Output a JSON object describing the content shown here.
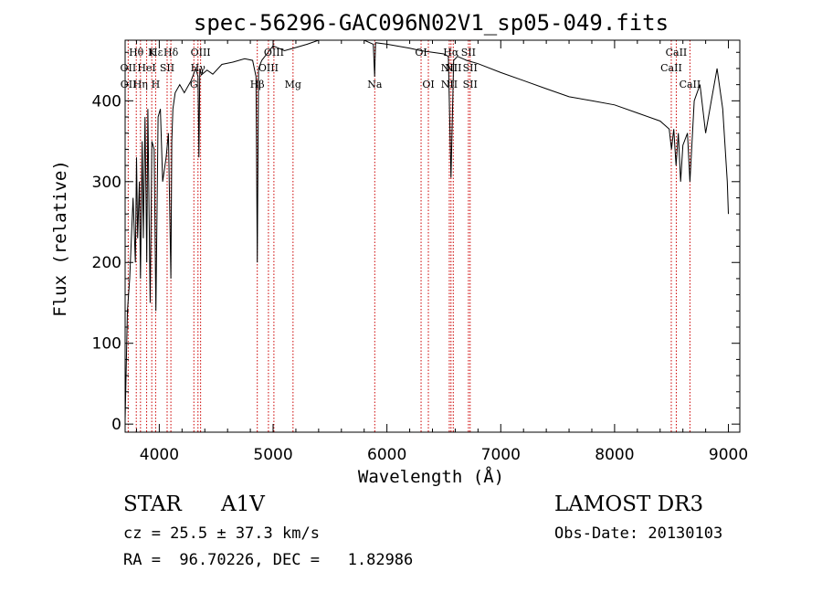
{
  "chart_data": {
    "type": "line",
    "title": "spec-56296-GAC096N02V1_sp05-049.fits",
    "xlabel": "Wavelength (Å)",
    "ylabel": "Flux (relative)",
    "xlim": [
      3700,
      9100
    ],
    "ylim": [
      -10,
      475
    ],
    "x_ticks": [
      4000,
      5000,
      6000,
      7000,
      8000,
      9000
    ],
    "x_tick_labels": [
      "4000",
      "5000",
      "6000",
      "7000",
      "8000",
      "9000"
    ],
    "y_ticks": [
      0,
      100,
      200,
      300,
      400
    ],
    "y_tick_labels": [
      "0",
      "100",
      "200",
      "300",
      "400"
    ],
    "grid": false,
    "series": [
      {
        "name": "spectrum",
        "x": [
          3700,
          3720,
          3740,
          3770,
          3790,
          3800,
          3810,
          3825,
          3835,
          3850,
          3860,
          3875,
          3890,
          3900,
          3920,
          3935,
          3955,
          3970,
          3990,
          4010,
          4030,
          4060,
          4080,
          4102,
          4110,
          4120,
          4140,
          4180,
          4220,
          4280,
          4320,
          4340,
          4348,
          4356,
          4370,
          4420,
          4470,
          4550,
          4650,
          4750,
          4820,
          4850,
          4861,
          4872,
          4900,
          5000,
          5100,
          5200,
          5300,
          5400,
          5600,
          5800,
          5880,
          5892,
          5900,
          6000,
          6200,
          6300,
          6400,
          6500,
          6540,
          6563,
          6586,
          6620,
          6700,
          6800,
          7000,
          7200,
          7400,
          7600,
          7800,
          8000,
          8200,
          8400,
          8480,
          8500,
          8520,
          8540,
          8560,
          8580,
          8600,
          8640,
          8662,
          8700,
          8750,
          8800,
          8850,
          8900,
          8950,
          8990,
          9000
        ],
        "y": [
          5,
          140,
          180,
          280,
          200,
          330,
          230,
          300,
          180,
          350,
          230,
          380,
          200,
          390,
          150,
          350,
          340,
          140,
          380,
          390,
          300,
          330,
          360,
          180,
          350,
          390,
          410,
          420,
          410,
          425,
          440,
          430,
          330,
          440,
          432,
          438,
          433,
          445,
          448,
          452,
          450,
          430,
          200,
          440,
          450,
          468,
          462,
          466,
          470,
          478,
          480,
          478,
          470,
          430,
          472,
          470,
          465,
          462,
          460,
          458,
          455,
          305,
          450,
          455,
          450,
          446,
          435,
          425,
          415,
          405,
          400,
          395,
          385,
          375,
          365,
          340,
          365,
          320,
          360,
          300,
          345,
          360,
          300,
          400,
          420,
          360,
          400,
          440,
          390,
          300,
          260
        ]
      }
    ],
    "line_annotations": [
      {
        "label": "Hθ",
        "x": 3798,
        "row": 0
      },
      {
        "label": "Hε",
        "x": 3970,
        "row": 0
      },
      {
        "label": "K",
        "x": 3934,
        "row": 0
      },
      {
        "label": "Hδ",
        "x": 4102,
        "row": 0
      },
      {
        "label": "OIII",
        "x": 4363,
        "row": 0
      },
      {
        "label": "OIII",
        "x": 5007,
        "row": 0
      },
      {
        "label": "OI",
        "x": 6300,
        "row": 0
      },
      {
        "label": "Hα",
        "x": 6563,
        "row": 0
      },
      {
        "label": "SII",
        "x": 6716,
        "row": 0
      },
      {
        "label": "CaII",
        "x": 8542,
        "row": 0
      },
      {
        "label": "OII",
        "x": 3727,
        "row": 1
      },
      {
        "label": "HeI",
        "x": 3889,
        "row": 1
      },
      {
        "label": "SII",
        "x": 4069,
        "row": 1
      },
      {
        "label": "Hγ",
        "x": 4340,
        "row": 1
      },
      {
        "label": "OIII",
        "x": 4959,
        "row": 1
      },
      {
        "label": "NII",
        "x": 6548,
        "row": 1
      },
      {
        "label": "NII",
        "x": 6583,
        "row": 1
      },
      {
        "label": "SII",
        "x": 6731,
        "row": 1
      },
      {
        "label": "CaII",
        "x": 8498,
        "row": 1
      },
      {
        "label": "OII",
        "x": 3729,
        "row": 2
      },
      {
        "label": "Hη",
        "x": 3835,
        "row": 2
      },
      {
        "label": "H",
        "x": 3968,
        "row": 2
      },
      {
        "label": "G",
        "x": 4304,
        "row": 2
      },
      {
        "label": "Hβ",
        "x": 4861,
        "row": 2
      },
      {
        "label": "Mg",
        "x": 5175,
        "row": 2
      },
      {
        "label": "Na",
        "x": 5893,
        "row": 2
      },
      {
        "label": "OI",
        "x": 6364,
        "row": 2
      },
      {
        "label": "NII",
        "x": 6548,
        "row": 2
      },
      {
        "label": "SII",
        "x": 6731,
        "row": 2
      },
      {
        "label": "CaII",
        "x": 8662,
        "row": 2
      }
    ],
    "marker_lines_x": [
      3727,
      3798,
      3835,
      3889,
      3934,
      3968,
      4069,
      4102,
      4304,
      4340,
      4363,
      4861,
      4959,
      5007,
      5175,
      5893,
      6300,
      6364,
      6548,
      6563,
      6583,
      6716,
      6731,
      8498,
      8542,
      8662
    ],
    "marker_color": "#cc0000",
    "line_color": "#000000"
  },
  "info": {
    "object_class": "STAR",
    "subclass": "A1V",
    "survey": "LAMOST DR3",
    "redshift_line": "cz = 25.5 ± 37.3 km/s",
    "obs_date_line": "Obs-Date: 20130103",
    "coords_line": "RA =  96.70226, DEC =   1.82986"
  }
}
